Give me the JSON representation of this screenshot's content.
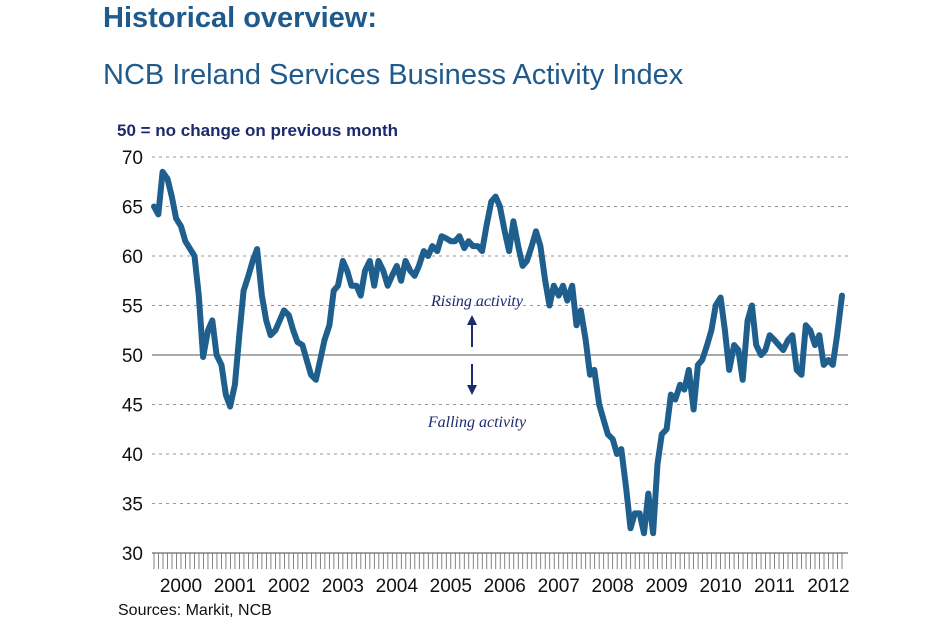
{
  "header": {
    "title": "Historical overview:",
    "subtitle": "NCB Ireland Services Business Activity Index"
  },
  "note": "50 =  no change on previous month",
  "source": "Sources: Markit, NCB",
  "colors": {
    "title": "#1f5a8c",
    "line": "#1f5f8e",
    "annotation": "#1c2a6e",
    "grid": "#999999",
    "baseline": "#555555"
  },
  "chart_data": {
    "type": "line",
    "title": "NCB Ireland Services Business Activity Index",
    "xlabel": "",
    "ylabel": "",
    "ylim": [
      30,
      70
    ],
    "yticks": [
      30,
      35,
      40,
      45,
      50,
      55,
      60,
      65,
      70
    ],
    "xlim": [
      2000,
      2012.75
    ],
    "xticks": [
      "2000",
      "2001",
      "2002",
      "2003",
      "2004",
      "2005",
      "2006",
      "2007",
      "2008",
      "2009",
      "2010",
      "2011",
      "2012"
    ],
    "grid": true,
    "reference_line": 50,
    "annotations": [
      {
        "text": "Rising activity",
        "direction": "up"
      },
      {
        "text": "Falling activity",
        "direction": "down"
      }
    ],
    "series": [
      {
        "values": [
          [
            2000.0,
            65.0
          ],
          [
            2000.08,
            64.2
          ],
          [
            2000.16,
            68.5
          ],
          [
            2000.25,
            67.8
          ],
          [
            2000.33,
            66.0
          ],
          [
            2000.41,
            63.8
          ],
          [
            2000.5,
            63.0
          ],
          [
            2000.58,
            61.5
          ],
          [
            2000.66,
            60.8
          ],
          [
            2000.75,
            60.0
          ],
          [
            2000.83,
            56.0
          ],
          [
            2000.91,
            49.8
          ],
          [
            2001.0,
            52.5
          ],
          [
            2001.08,
            53.5
          ],
          [
            2001.16,
            50.0
          ],
          [
            2001.25,
            49.0
          ],
          [
            2001.33,
            46.0
          ],
          [
            2001.41,
            44.8
          ],
          [
            2001.5,
            47.0
          ],
          [
            2001.58,
            52.0
          ],
          [
            2001.66,
            56.5
          ],
          [
            2001.75,
            58.0
          ],
          [
            2001.83,
            59.5
          ],
          [
            2001.91,
            60.7
          ],
          [
            2002.0,
            56.0
          ],
          [
            2002.08,
            53.5
          ],
          [
            2002.16,
            52.0
          ],
          [
            2002.25,
            52.5
          ],
          [
            2002.33,
            53.5
          ],
          [
            2002.41,
            54.5
          ],
          [
            2002.5,
            54.0
          ],
          [
            2002.58,
            52.5
          ],
          [
            2002.66,
            51.3
          ],
          [
            2002.75,
            51.0
          ],
          [
            2002.83,
            49.5
          ],
          [
            2002.91,
            48.0
          ],
          [
            2003.0,
            47.5
          ],
          [
            2003.08,
            49.5
          ],
          [
            2003.16,
            51.5
          ],
          [
            2003.25,
            53.0
          ],
          [
            2003.33,
            56.5
          ],
          [
            2003.41,
            57.0
          ],
          [
            2003.5,
            59.5
          ],
          [
            2003.58,
            58.5
          ],
          [
            2003.66,
            57.0
          ],
          [
            2003.75,
            57.0
          ],
          [
            2003.83,
            56.0
          ],
          [
            2003.91,
            58.5
          ],
          [
            2004.0,
            59.5
          ],
          [
            2004.08,
            57.0
          ],
          [
            2004.16,
            59.5
          ],
          [
            2004.25,
            58.5
          ],
          [
            2004.33,
            57.0
          ],
          [
            2004.41,
            58.0
          ],
          [
            2004.5,
            59.0
          ],
          [
            2004.58,
            57.5
          ],
          [
            2004.66,
            59.5
          ],
          [
            2004.75,
            58.5
          ],
          [
            2004.83,
            58.0
          ],
          [
            2004.91,
            59.0
          ],
          [
            2005.0,
            60.5
          ],
          [
            2005.08,
            60.0
          ],
          [
            2005.16,
            61.0
          ],
          [
            2005.25,
            60.5
          ],
          [
            2005.33,
            62.0
          ],
          [
            2005.41,
            61.8
          ],
          [
            2005.5,
            61.5
          ],
          [
            2005.58,
            61.5
          ],
          [
            2005.66,
            62.0
          ],
          [
            2005.75,
            60.8
          ],
          [
            2005.83,
            61.5
          ],
          [
            2005.91,
            61.0
          ],
          [
            2006.0,
            61.0
          ],
          [
            2006.08,
            60.5
          ],
          [
            2006.16,
            63.0
          ],
          [
            2006.25,
            65.5
          ],
          [
            2006.33,
            66.0
          ],
          [
            2006.41,
            65.0
          ],
          [
            2006.5,
            62.5
          ],
          [
            2006.58,
            60.5
          ],
          [
            2006.66,
            63.5
          ],
          [
            2006.75,
            61.0
          ],
          [
            2006.83,
            59.0
          ],
          [
            2006.91,
            59.5
          ],
          [
            2007.0,
            61.0
          ],
          [
            2007.08,
            62.5
          ],
          [
            2007.16,
            61.0
          ],
          [
            2007.25,
            57.5
          ],
          [
            2007.33,
            55.0
          ],
          [
            2007.41,
            57.0
          ],
          [
            2007.5,
            56.0
          ],
          [
            2007.58,
            57.0
          ],
          [
            2007.66,
            55.5
          ],
          [
            2007.75,
            57.0
          ],
          [
            2007.83,
            53.0
          ],
          [
            2007.91,
            54.5
          ],
          [
            2008.0,
            51.5
          ],
          [
            2008.08,
            48.0
          ],
          [
            2008.16,
            48.5
          ],
          [
            2008.25,
            45.0
          ],
          [
            2008.33,
            43.5
          ],
          [
            2008.41,
            42.0
          ],
          [
            2008.5,
            41.5
          ],
          [
            2008.58,
            40.0
          ],
          [
            2008.66,
            40.5
          ],
          [
            2008.75,
            36.5
          ],
          [
            2008.83,
            32.5
          ],
          [
            2008.91,
            34.0
          ],
          [
            2009.0,
            34.0
          ],
          [
            2009.08,
            32.0
          ],
          [
            2009.16,
            36.0
          ],
          [
            2009.25,
            32.0
          ],
          [
            2009.33,
            39.0
          ],
          [
            2009.41,
            42.0
          ],
          [
            2009.5,
            42.5
          ],
          [
            2009.58,
            46.0
          ],
          [
            2009.66,
            45.5
          ],
          [
            2009.75,
            47.0
          ],
          [
            2009.83,
            46.5
          ],
          [
            2009.91,
            48.5
          ],
          [
            2010.0,
            44.5
          ],
          [
            2010.08,
            49.0
          ],
          [
            2010.16,
            49.5
          ],
          [
            2010.25,
            51.0
          ],
          [
            2010.33,
            52.5
          ],
          [
            2010.41,
            55.0
          ],
          [
            2010.5,
            55.8
          ],
          [
            2010.58,
            52.5
          ],
          [
            2010.66,
            48.5
          ],
          [
            2010.75,
            51.0
          ],
          [
            2010.83,
            50.5
          ],
          [
            2010.91,
            47.5
          ],
          [
            2011.0,
            53.5
          ],
          [
            2011.08,
            55.0
          ],
          [
            2011.16,
            51.0
          ],
          [
            2011.25,
            50.0
          ],
          [
            2011.33,
            50.5
          ],
          [
            2011.41,
            52.0
          ],
          [
            2011.5,
            51.5
          ],
          [
            2011.58,
            51.0
          ],
          [
            2011.66,
            50.5
          ],
          [
            2011.75,
            51.5
          ],
          [
            2011.83,
            52.0
          ],
          [
            2011.91,
            48.5
          ],
          [
            2012.0,
            48.0
          ],
          [
            2012.08,
            53.0
          ],
          [
            2012.16,
            52.5
          ],
          [
            2012.25,
            51.0
          ],
          [
            2012.33,
            52.0
          ],
          [
            2012.41,
            49.0
          ],
          [
            2012.5,
            49.5
          ],
          [
            2012.58,
            49.0
          ],
          [
            2012.66,
            52.0
          ],
          [
            2012.75,
            56.0
          ]
        ]
      }
    ]
  }
}
